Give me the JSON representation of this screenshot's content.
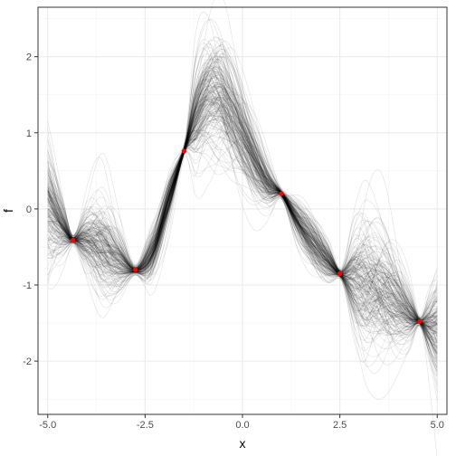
{
  "chart_data": {
    "type": "line",
    "title": "",
    "xlabel": "x",
    "ylabel": "f",
    "xlim": [
      -5.25,
      5.25
    ],
    "ylim": [
      -2.7,
      2.65
    ],
    "x_ticks": [
      -5.0,
      -2.5,
      0.0,
      2.5,
      5.0
    ],
    "x_tick_labels": [
      "-5.0",
      "-2.5",
      "0.0",
      "2.5",
      "5.0"
    ],
    "y_ticks": [
      -2,
      -1,
      0,
      1,
      2
    ],
    "y_tick_labels": [
      "-2",
      "-1",
      "0",
      "1",
      "2"
    ],
    "grid": true,
    "theme": "bw",
    "legend": "none",
    "colors": {
      "sample_line": "#000000",
      "observation_point": "#ff0000",
      "grid_major": "#ebebeb",
      "grid_minor": "#f5f5f5",
      "panel_border": "#333333"
    },
    "series_description": "posterior sample functions drawn as translucent black lines",
    "num_sample_lines": 200,
    "observations": {
      "x": [
        -4.35,
        -2.75,
        -1.5,
        1.0,
        2.5,
        4.55
      ],
      "y": [
        -0.41,
        -0.8,
        0.76,
        0.2,
        -0.85,
        -1.48
      ]
    },
    "posterior_mean": {
      "x": [
        -5.0,
        -4.6,
        -4.35,
        -4.0,
        -3.6,
        -3.2,
        -2.75,
        -2.3,
        -1.9,
        -1.5,
        -1.2,
        -0.9,
        -0.6,
        -0.3,
        0.0,
        0.4,
        0.7,
        1.0,
        1.4,
        1.8,
        2.2,
        2.5,
        2.9,
        3.2,
        3.6,
        4.0,
        4.3,
        4.55,
        4.8,
        5.0
      ],
      "y": [
        -0.05,
        -0.3,
        -0.41,
        -0.4,
        -0.45,
        -0.62,
        -0.8,
        -0.55,
        0.1,
        0.76,
        1.15,
        1.45,
        1.5,
        1.3,
        1.0,
        0.55,
        0.3,
        0.2,
        -0.15,
        -0.45,
        -0.7,
        -0.85,
        -0.9,
        -0.95,
        -1.05,
        -1.25,
        -1.4,
        -1.48,
        -1.55,
        -1.6
      ]
    },
    "posterior_band": {
      "x": [
        -5.0,
        -4.6,
        -4.35,
        -4.0,
        -3.6,
        -3.2,
        -2.75,
        -2.3,
        -1.9,
        -1.5,
        -1.2,
        -0.9,
        -0.6,
        -0.3,
        0.0,
        0.4,
        0.7,
        1.0,
        1.4,
        1.8,
        2.2,
        2.5,
        2.9,
        3.2,
        3.6,
        4.0,
        4.3,
        4.55,
        4.8,
        5.0
      ],
      "sd": [
        0.5,
        0.2,
        0.03,
        0.25,
        0.4,
        0.25,
        0.03,
        0.2,
        0.18,
        0.03,
        0.35,
        0.45,
        0.5,
        0.45,
        0.35,
        0.25,
        0.15,
        0.03,
        0.15,
        0.2,
        0.15,
        0.03,
        0.4,
        0.55,
        0.5,
        0.35,
        0.2,
        0.03,
        0.25,
        0.45
      ]
    }
  }
}
